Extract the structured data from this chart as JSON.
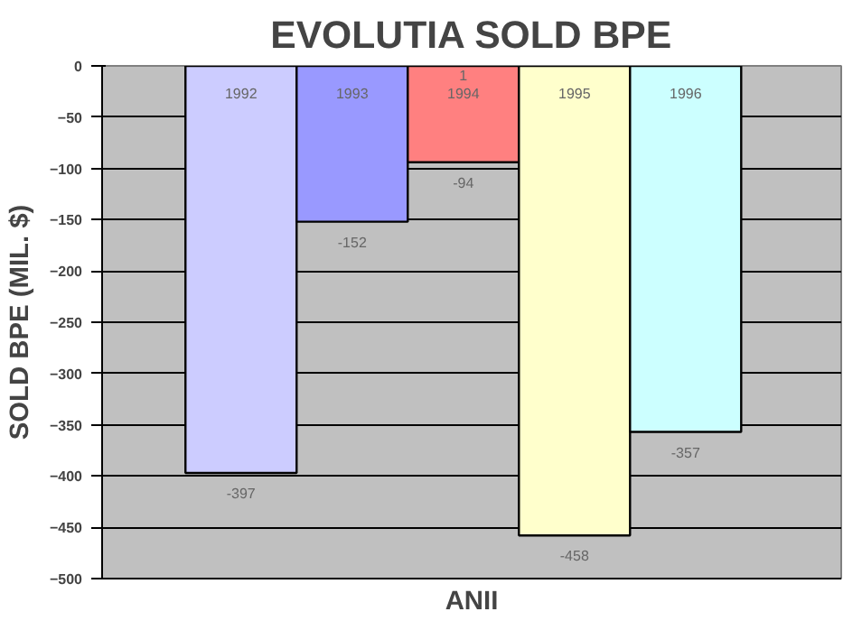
{
  "chart_data": {
    "type": "bar",
    "title": "EVOLUTIA SOLD BPE",
    "xlabel": "ANII",
    "ylabel": "SOLD BPE (MIL. $)",
    "categories": [
      "1992",
      "1993",
      "1994",
      "1995",
      "1996"
    ],
    "values": [
      -397,
      -152,
      -94,
      -458,
      -357
    ],
    "colors": [
      "#ccccff",
      "#9999ff",
      "#ff8080",
      "#ffffcc",
      "#ccffff"
    ],
    "ylim": [
      -500,
      0
    ],
    "yticks": [
      0,
      -50,
      -100,
      -150,
      -200,
      -250,
      -300,
      -350,
      -400,
      -450,
      -500
    ],
    "grid": "y",
    "data_labels": true,
    "annotations": [
      "1"
    ]
  }
}
